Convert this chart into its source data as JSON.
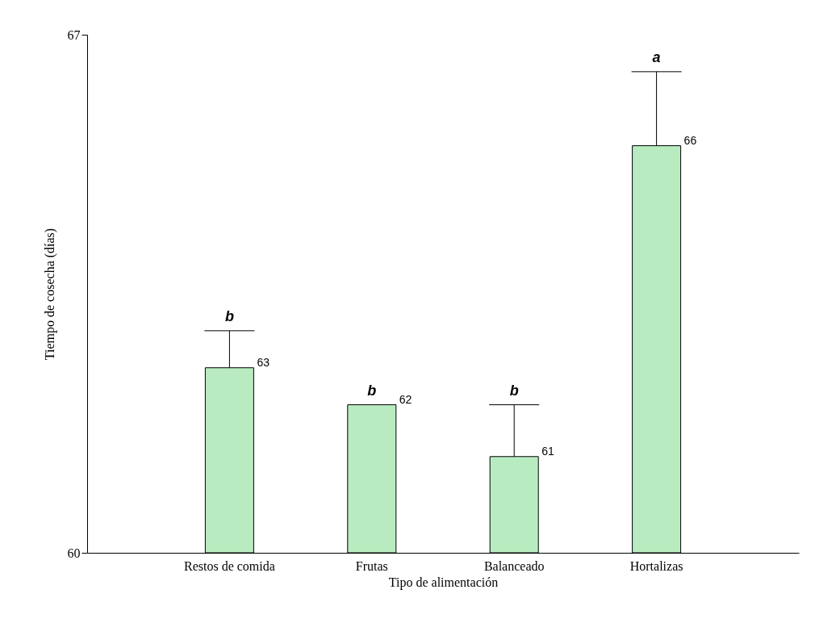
{
  "chart_data": {
    "type": "bar",
    "xlabel": "Tipo de alimentación",
    "ylabel": "Tiempo de cosecha (días)",
    "categories": [
      "Restos de comida",
      "Frutas",
      "Balanceado",
      "Hortalizas"
    ],
    "values": [
      62.5,
      62.0,
      61.3,
      65.5
    ],
    "color": "#b8ecc0",
    "errors": [
      [
        62.5,
        63.0
      ],
      null,
      [
        61.3,
        62.0
      ],
      [
        65.5,
        66.5
      ]
    ],
    "value_labels": [
      "63",
      "62",
      "61",
      "66"
    ],
    "ylim": [
      60,
      67
    ],
    "yticks": [
      60,
      67
    ],
    "grid": false,
    "annotations": [
      "b",
      "b",
      "b",
      "a"
    ]
  }
}
